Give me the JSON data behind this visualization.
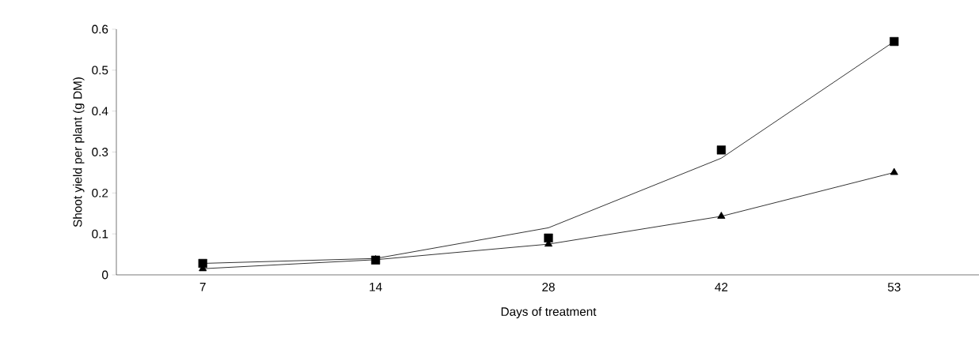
{
  "chart_data": {
    "type": "line",
    "xlabel": "Days of treatment",
    "ylabel": "Shoot yield per plant (g DM)",
    "categories": [
      "7",
      "14",
      "28",
      "42",
      "53"
    ],
    "series": [
      {
        "color": "#000000",
        "marker": "none",
        "values": [
          0.028,
          0.04,
          0.115,
          0.285,
          0.57
        ]
      },
      {
        "type": "scatter",
        "color": "#000000",
        "marker": "square",
        "values": [
          0.028,
          0.036,
          0.09,
          0.305,
          0.57
        ]
      },
      {
        "color": "#000000",
        "marker": "triangle",
        "values": [
          0.015,
          0.037,
          0.075,
          0.143,
          0.25
        ]
      }
    ],
    "ylim": [
      0,
      0.6
    ],
    "yticks": [
      0,
      0.1,
      0.2,
      0.3,
      0.4,
      0.5,
      0.6
    ],
    "grid": false
  }
}
